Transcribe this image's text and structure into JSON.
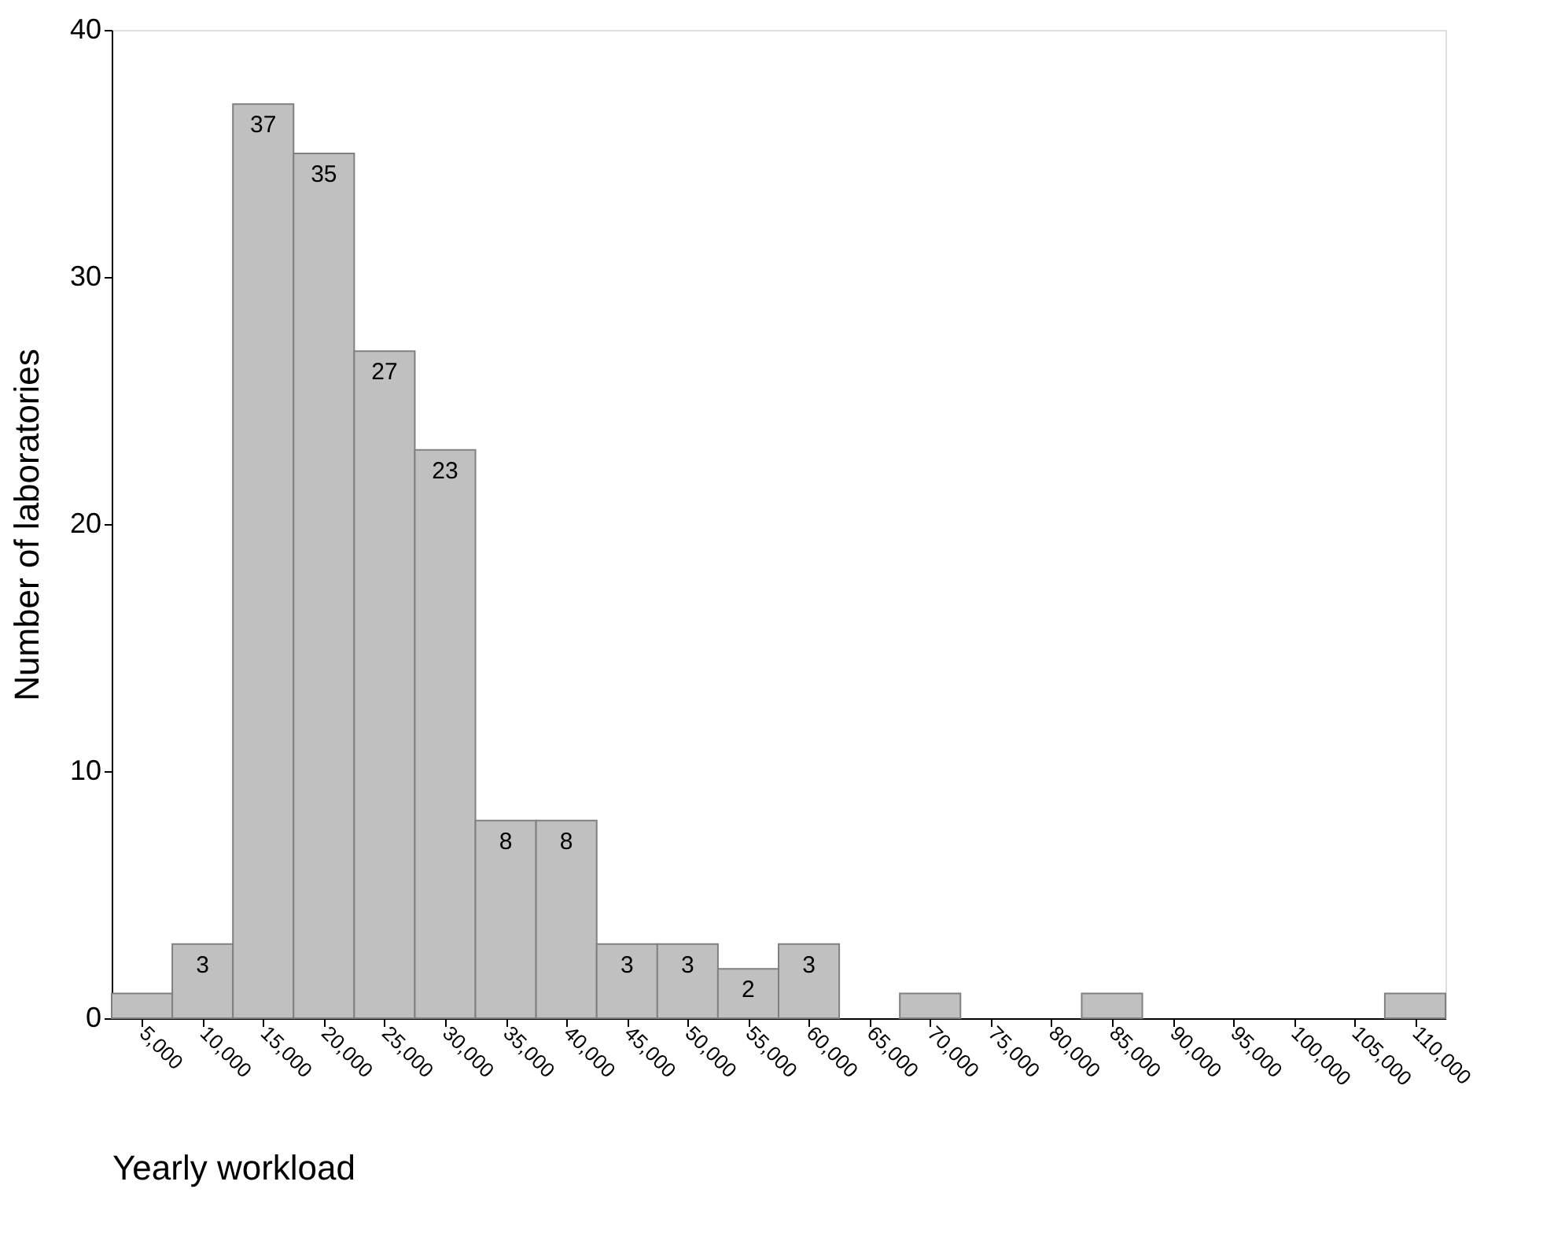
{
  "chart_data": {
    "type": "histogram",
    "xlabel": "Yearly workload",
    "ylabel": "Number of laboratories",
    "bins": [
      2500,
      7500,
      12500,
      17500,
      22500,
      27500,
      32500,
      37500,
      42500,
      47500,
      52500,
      57500,
      62500,
      67500,
      72500,
      77500,
      82500,
      87500,
      92500,
      97500,
      102500,
      107500,
      112500
    ],
    "values": [
      1,
      3,
      37,
      35,
      27,
      23,
      8,
      8,
      3,
      3,
      2,
      3,
      0,
      1,
      0,
      0,
      1,
      0,
      0,
      0,
      0,
      1
    ],
    "value_labels": [
      null,
      "3",
      "37",
      "35",
      "27",
      "23",
      "8",
      "8",
      "3",
      "3",
      "2",
      "3",
      null,
      null,
      null,
      null,
      null,
      null,
      null,
      null,
      null,
      null
    ],
    "color": "#c0c0c0",
    "xlim": [
      2500,
      112500
    ],
    "ylim": [
      0,
      40
    ],
    "yticks": [
      0,
      10,
      20,
      30,
      40
    ],
    "xticks": [
      {
        "value": 5000,
        "label": "5,000"
      },
      {
        "value": 10000,
        "label": "10,000"
      },
      {
        "value": 15000,
        "label": "15,000"
      },
      {
        "value": 20000,
        "label": "20,000"
      },
      {
        "value": 25000,
        "label": "25,000"
      },
      {
        "value": 30000,
        "label": "30,000"
      },
      {
        "value": 35000,
        "label": "35,000"
      },
      {
        "value": 40000,
        "label": "40,000"
      },
      {
        "value": 45000,
        "label": "45,000"
      },
      {
        "value": 50000,
        "label": "50,000"
      },
      {
        "value": 55000,
        "label": "55,000"
      },
      {
        "value": 60000,
        "label": "60,000"
      },
      {
        "value": 65000,
        "label": "65,000"
      },
      {
        "value": 70000,
        "label": "70,000"
      },
      {
        "value": 75000,
        "label": "75,000"
      },
      {
        "value": 80000,
        "label": "80,000"
      },
      {
        "value": 85000,
        "label": "85,000"
      },
      {
        "value": 90000,
        "label": "90,000"
      },
      {
        "value": 95000,
        "label": "95,000"
      },
      {
        "value": 100000,
        "label": "100,000"
      },
      {
        "value": 105000,
        "label": "105,000"
      },
      {
        "value": 110000,
        "label": "110,000"
      }
    ],
    "grid": false
  }
}
